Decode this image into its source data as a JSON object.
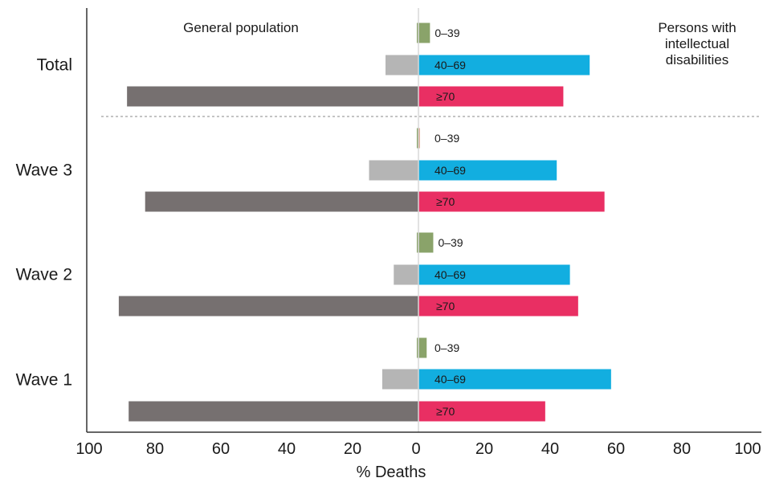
{
  "chart_data": {
    "type": "bar",
    "orientation": "horizontal-diverging",
    "xlabel": "% Deaths",
    "x_ticks": [
      "100",
      "80",
      "60",
      "40",
      "20",
      "0",
      "20",
      "40",
      "60",
      "80",
      "100"
    ],
    "xlim": [
      -100,
      100
    ],
    "left_title": "General population",
    "right_title_lines": [
      "Persons with",
      "intellectual",
      "disabilities"
    ],
    "age_groups": [
      "0–39",
      "40–69",
      "≥70"
    ],
    "colors": {
      "general": [
        "#8aa36a",
        "#b5b5b5",
        "#767070"
      ],
      "intellectual": [
        "#8aa36a",
        "#12aee0",
        "#e92f63"
      ],
      "wave3_0_39": "#c0704a"
    },
    "groups": [
      {
        "name": "Total",
        "general": [
          0.5,
          10,
          88.5
        ],
        "intellectual": [
          3.5,
          52,
          44
        ]
      },
      {
        "name": "Wave 3",
        "general": [
          0.5,
          15,
          83
        ],
        "intellectual": [
          0.3,
          42,
          56.5
        ]
      },
      {
        "name": "Wave 2",
        "general": [
          0.5,
          7.5,
          91
        ],
        "intellectual": [
          4.5,
          46,
          48.5
        ]
      },
      {
        "name": "Wave 1",
        "general": [
          0.5,
          11,
          88
        ],
        "intellectual": [
          2.5,
          58.5,
          38.5
        ]
      }
    ],
    "grid": false
  }
}
